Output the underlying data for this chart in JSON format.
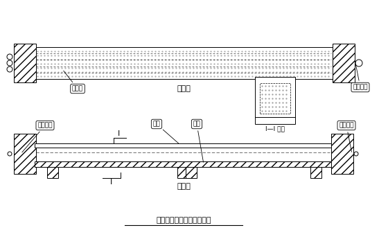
{
  "bg_color": "#ffffff",
  "line_color": "#000000",
  "title": "先张法制棁台座布置示意图",
  "label_daijuliang": "待浇梁",
  "label_pingmianjitu": "平面图",
  "label_II_section": "I—I 截面",
  "label_gongjiao": "工作锡具",
  "label_zhanglataizuo": "张拉台座",
  "label_zhenliang": "枱梁",
  "label_diban": "底板",
  "label_poumiantu": "剖面图"
}
